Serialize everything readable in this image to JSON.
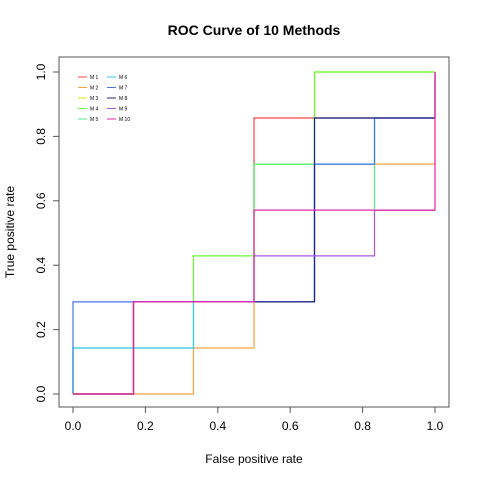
{
  "chart_data": {
    "type": "line",
    "title": "ROC Curve of 10 Methods",
    "xlabel": "False positive rate",
    "ylabel": "True positive rate",
    "xlim": [
      0,
      1
    ],
    "ylim": [
      0,
      1
    ],
    "xticks": [
      "0.0",
      "0.2",
      "0.4",
      "0.6",
      "0.8",
      "1.0"
    ],
    "yticks": [
      "0.0",
      "0.2",
      "0.4",
      "0.6",
      "0.8",
      "1.0"
    ],
    "grid": false,
    "legend_position": "top-left",
    "series": [
      {
        "name": "M 1",
        "color": "#ff4040",
        "x": [
          0,
          0.167,
          0.167,
          0.5,
          0.5,
          1.0,
          1.0
        ],
        "y": [
          0,
          0,
          0.286,
          0.286,
          0.857,
          0.857,
          1.0
        ]
      },
      {
        "name": "M 2",
        "color": "#ffa040",
        "x": [
          0,
          0.333,
          0.333,
          0.5,
          0.5,
          0.667,
          0.667,
          1.0,
          1.0
        ],
        "y": [
          0,
          0,
          0.143,
          0.143,
          0.286,
          0.286,
          0.714,
          0.714,
          1.0
        ]
      },
      {
        "name": "M 3",
        "color": "#e6e600",
        "x": [
          0,
          0.167,
          0.167,
          0.5,
          0.5,
          0.667,
          0.667,
          1.0,
          1.0
        ],
        "y": [
          0,
          0,
          0.286,
          0.286,
          0.714,
          0.714,
          1.0,
          1.0,
          1.0
        ]
      },
      {
        "name": "M 4",
        "color": "#66ff33",
        "x": [
          0,
          0.167,
          0.167,
          0.333,
          0.333,
          0.5,
          0.5,
          0.667,
          0.667,
          1.0
        ],
        "y": [
          0,
          0,
          0.286,
          0.286,
          0.429,
          0.429,
          0.714,
          0.714,
          1.0,
          1.0
        ]
      },
      {
        "name": "M 5",
        "color": "#55ee88",
        "x": [
          0,
          0,
          0.333,
          0.333,
          0.5,
          0.5,
          0.667,
          0.667,
          0.833,
          0.833,
          1.0
        ],
        "y": [
          0,
          0.143,
          0.143,
          0.286,
          0.286,
          0.714,
          0.714,
          0.857,
          0.857,
          0.571,
          0.571
        ]
      },
      {
        "name": "M 6",
        "color": "#33ccee",
        "x": [
          0,
          0,
          0.333,
          0.333,
          0.667,
          0.667,
          0.833,
          0.833,
          1.0,
          1.0
        ],
        "y": [
          0,
          0.143,
          0.143,
          0.286,
          0.286,
          0.714,
          0.714,
          0.857,
          0.857,
          1.0
        ]
      },
      {
        "name": "M 7",
        "color": "#4477ee",
        "x": [
          0,
          0,
          0.667,
          0.667,
          0.833,
          0.833,
          1.0,
          1.0
        ],
        "y": [
          0,
          0.286,
          0.286,
          0.714,
          0.714,
          0.857,
          0.857,
          1.0
        ]
      },
      {
        "name": "M 8",
        "color": "#222288",
        "x": [
          0,
          0.167,
          0.167,
          0.667,
          0.667,
          1.0
        ],
        "y": [
          0,
          0,
          0.286,
          0.286,
          0.857,
          0.857
        ]
      },
      {
        "name": "M 9",
        "color": "#aa55ee",
        "x": [
          0,
          0.167,
          0.167,
          0.5,
          0.5,
          0.833,
          0.833,
          1.0
        ],
        "y": [
          0,
          0,
          0.286,
          0.286,
          0.429,
          0.429,
          0.571,
          0.571
        ]
      },
      {
        "name": "M 10",
        "color": "#ee22aa",
        "x": [
          0,
          0.167,
          0.167,
          0.5,
          0.5,
          1.0,
          1.0
        ],
        "y": [
          0,
          0,
          0.286,
          0.286,
          0.571,
          0.571,
          1.0
        ]
      }
    ]
  }
}
